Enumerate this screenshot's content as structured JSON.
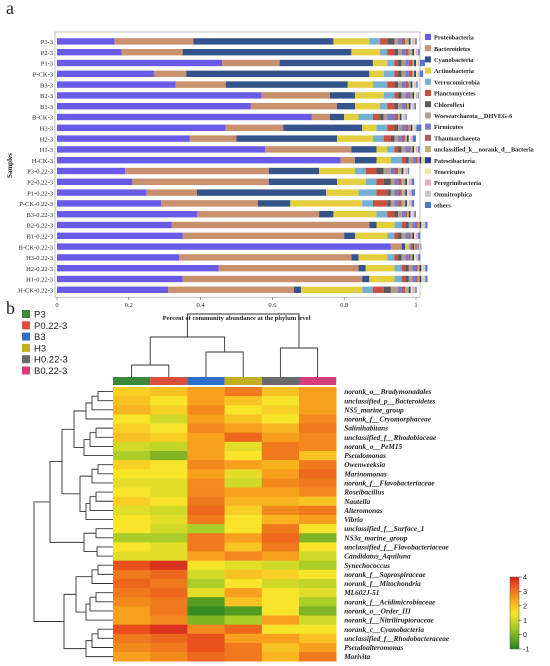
{
  "panel_a_letter": "a",
  "panel_b_letter": "b",
  "chart_data": [
    {
      "type": "bar",
      "orientation": "horizontal",
      "stacked": true,
      "xlabel": "Percent of community abundance at the phylum level",
      "ylabel": "Samples",
      "xlim": [
        0,
        1
      ],
      "xticks": [
        "0",
        "0.2",
        "0.4",
        "0.6",
        "0.8",
        "1"
      ],
      "legend_position": "right",
      "categories": [
        "P3-3",
        "P2-3",
        "P1-3",
        "P-CK-3",
        "B3-3",
        "B2-3",
        "B1-3",
        "B-CK-3",
        "H3-3",
        "H2-3",
        "H1-3",
        "H-CK-3",
        "P3-0.22-3",
        "P2-0.22-3",
        "P1-0.22-3",
        "P-CK-0.22-3",
        "B3-0.22-3",
        "B2-0.22-3",
        "B1-0.22-3",
        "B-CK-0.22-3",
        "H3-0.22-3",
        "H2-0.22-3",
        "H1-0.22-3",
        "H-CK-0.22-3"
      ],
      "series": [
        {
          "name": "Proteobacteria",
          "color": "#6a5ae8",
          "values": [
            0.16,
            0.18,
            0.46,
            0.27,
            0.33,
            0.57,
            0.54,
            0.71,
            0.47,
            0.37,
            0.58,
            0.79,
            0.19,
            0.21,
            0.25,
            0.29,
            0.39,
            0.32,
            0.35,
            0.93,
            0.34,
            0.45,
            0.35,
            0.31
          ]
        },
        {
          "name": "Bacteroidetes",
          "color": "#c8906c",
          "values": [
            0.22,
            0.17,
            0.16,
            0.09,
            0.14,
            0.19,
            0.24,
            0.05,
            0.16,
            0.13,
            0.24,
            0.04,
            0.4,
            0.38,
            0.14,
            0.27,
            0.34,
            0.55,
            0.45,
            0.03,
            0.48,
            0.39,
            0.5,
            0.35
          ]
        },
        {
          "name": "Cyanobacteria",
          "color": "#34538a",
          "values": [
            0.39,
            0.47,
            0.26,
            0.51,
            0.34,
            0.07,
            0.05,
            0.04,
            0.22,
            0.28,
            0.07,
            0.06,
            0.14,
            0.19,
            0.36,
            0.09,
            0.04,
            0.02,
            0.03,
            0.01,
            0.02,
            0.02,
            0.02,
            0.02
          ]
        },
        {
          "name": "Actinobacteria",
          "color": "#e3cf3e",
          "values": [
            0.1,
            0.08,
            0.04,
            0.04,
            0.07,
            0.08,
            0.07,
            0.04,
            0.04,
            0.1,
            0.03,
            0.04,
            0.1,
            0.08,
            0.09,
            0.2,
            0.12,
            0.05,
            0.09,
            0.01,
            0.08,
            0.08,
            0.07,
            0.17
          ]
        },
        {
          "name": "Verrucomicrobia",
          "color": "#74b0d2",
          "values": [
            0.03,
            0.02,
            0.02,
            0.03,
            0.04,
            0.03,
            0.02,
            0.04,
            0.03,
            0.03,
            0.02,
            0.03,
            0.03,
            0.03,
            0.05,
            0.03,
            0.03,
            0.02,
            0.02,
            0.005,
            0.02,
            0.02,
            0.02,
            0.03
          ]
        },
        {
          "name": "Planctomycetes",
          "color": "#c9503e",
          "values": [
            0.02,
            0.02,
            0.01,
            0.01,
            0.02,
            0.01,
            0.02,
            0.02,
            0.02,
            0.02,
            0.01,
            0.01,
            0.03,
            0.02,
            0.03,
            0.04,
            0.02,
            0.01,
            0.01,
            0.005,
            0.01,
            0.01,
            0.01,
            0.03
          ]
        },
        {
          "name": "Chloroflexi",
          "color": "#5a5a5a",
          "values": [
            0.02,
            0.01,
            0.01,
            0.01,
            0.01,
            0.01,
            0.01,
            0.01,
            0.01,
            0.01,
            0.01,
            0.01,
            0.02,
            0.02,
            0.01,
            0.01,
            0.01,
            0.01,
            0.01,
            0.005,
            0.01,
            0.01,
            0.01,
            0.02
          ]
        },
        {
          "name": "Woesearchaeota__DHVEG-6",
          "color": "#b29c92",
          "values": [
            0.01,
            0.01,
            0.01,
            0.01,
            0.01,
            0.01,
            0.01,
            0.01,
            0.01,
            0.01,
            0.01,
            0.01,
            0.02,
            0.01,
            0.01,
            0.01,
            0.01,
            0.01,
            0.01,
            0.003,
            0.01,
            0.01,
            0.01,
            0.02
          ]
        },
        {
          "name": "Firmicutes",
          "color": "#7a7ac6",
          "values": [
            0.01,
            0.01,
            0.01,
            0.01,
            0.01,
            0.01,
            0.01,
            0.02,
            0.01,
            0.01,
            0.01,
            0.01,
            0.01,
            0.01,
            0.01,
            0.01,
            0.01,
            0.01,
            0.01,
            0.003,
            0.01,
            0.01,
            0.01,
            0.01
          ]
        },
        {
          "name": "Thaumarchaeota",
          "color": "#b05b6a",
          "values": [
            0.01,
            0.01,
            0.01,
            0.01,
            0.01,
            0.005,
            0.005,
            0.01,
            0.01,
            0.01,
            0.005,
            0.005,
            0.01,
            0.01,
            0.01,
            0.01,
            0.005,
            0.005,
            0.005,
            0.002,
            0.005,
            0.005,
            0.005,
            0.01
          ]
        },
        {
          "name": "unclassified_k__norank_d__Bacteria",
          "color": "#b8b070",
          "values": [
            0.01,
            0.01,
            0.005,
            0.005,
            0.005,
            0.005,
            0.005,
            0.005,
            0.005,
            0.005,
            0.005,
            0.005,
            0.01,
            0.01,
            0.01,
            0.01,
            0.005,
            0.005,
            0.005,
            0.002,
            0.005,
            0.005,
            0.005,
            0.01
          ]
        },
        {
          "name": "Patescibacteria",
          "color": "#2f3e8c",
          "values": [
            0.005,
            0.005,
            0.005,
            0.005,
            0.005,
            0.005,
            0.005,
            0.005,
            0.005,
            0.005,
            0.005,
            0.005,
            0.005,
            0.005,
            0.005,
            0.005,
            0.005,
            0.005,
            0.005,
            0.002,
            0.005,
            0.005,
            0.005,
            0.005
          ]
        },
        {
          "name": "Tenericutes",
          "color": "#f5e6a6",
          "values": [
            0.005,
            0.005,
            0.005,
            0.005,
            0.005,
            0.005,
            0.005,
            0.005,
            0.005,
            0.005,
            0.005,
            0.005,
            0.005,
            0.005,
            0.005,
            0.005,
            0.005,
            0.005,
            0.005,
            0.002,
            0.005,
            0.005,
            0.005,
            0.005
          ]
        },
        {
          "name": "Peregrinibacteria",
          "color": "#e6a8c4",
          "values": [
            0.005,
            0.003,
            0.003,
            0.003,
            0.003,
            0.003,
            0.003,
            0.003,
            0.003,
            0.003,
            0.003,
            0.003,
            0.005,
            0.005,
            0.005,
            0.005,
            0.003,
            0.003,
            0.003,
            0.002,
            0.003,
            0.003,
            0.003,
            0.005
          ]
        },
        {
          "name": "Omnitrophica",
          "color": "#c7c7c7",
          "values": [
            0.003,
            0.003,
            0.003,
            0.003,
            0.003,
            0.003,
            0.003,
            0.003,
            0.003,
            0.003,
            0.003,
            0.003,
            0.003,
            0.003,
            0.003,
            0.003,
            0.003,
            0.003,
            0.003,
            0.002,
            0.003,
            0.003,
            0.003,
            0.003
          ]
        },
        {
          "name": "others",
          "color": "#5577cc",
          "values": [
            0.004,
            0.004,
            0.014,
            0.009,
            0.004,
            0.002,
            0.004,
            0.003,
            0.014,
            0.009,
            0.004,
            0.003,
            0.003,
            0.007,
            0.009,
            0.007,
            0.004,
            0.006,
            0.006,
            0.002,
            0.006,
            0.006,
            0.006,
            0.004
          ]
        }
      ]
    },
    {
      "type": "heatmap",
      "legend_position": "top-left",
      "colorbar_ticks": [
        "4",
        "3",
        "2",
        "1",
        "0",
        "-1"
      ],
      "zlim": [
        -1,
        4
      ],
      "columns": [
        "P3",
        "P0.22-3",
        "B3",
        "H3",
        "H0.22-3",
        "B0.22-3"
      ],
      "column_colors": [
        "#3a8a3a",
        "#d8503a",
        "#2f6fc8",
        "#c0b020",
        "#6a6a6a",
        "#d43d78"
      ],
      "legend": [
        {
          "name": "P3",
          "color": "#3a8a3a"
        },
        {
          "name": "P0.22-3",
          "color": "#d8503a"
        },
        {
          "name": "B3",
          "color": "#2f6fc8"
        },
        {
          "name": "H3",
          "color": "#c0b020"
        },
        {
          "name": "H0.22-3",
          "color": "#6a6a6a"
        },
        {
          "name": "B0.22-3",
          "color": "#d43d78"
        }
      ],
      "rows": [
        "norank_o__Bradymonadales",
        "unclassified_p__Bacteroidetes",
        "NS5_marine_group",
        "norank_f__Cryomorphaceae",
        "Salinihabitans",
        "unclassified_f__Rhodobiaceae",
        "norank_o__PeM15",
        "Pseudomonas",
        "Owenweeksia",
        "Marinomonas",
        "norank_f__Flavobacteriaceae",
        "Roseibacillus",
        "Nautella",
        "Alteromonas",
        "Vibrio",
        "unclassified_f__Surface_1",
        "NS3a_marine_group",
        "unclassified_f__Flavobacteriaceae",
        "Candidatus_Aquiluna",
        "Synechococcus",
        "norank_f__Saprospiraceae",
        "norank_f__Mitochondria",
        "ML602J-51",
        "norank_f__Acidimicrobiaceae",
        "norank_o__Order_III",
        "norank_f__Nitriliruptoraceae",
        "norank_c__Cyanobacteria",
        "unclassified_f__Rhodobacteraceae",
        "Pseudoalteromonas",
        "Marivita"
      ],
      "values": [
        [
          1.8,
          2.0,
          2.5,
          3.0,
          2.0,
          2.5
        ],
        [
          2.0,
          1.5,
          2.5,
          2.0,
          1.5,
          2.5
        ],
        [
          2.2,
          1.8,
          2.8,
          1.5,
          1.8,
          2.5
        ],
        [
          1.5,
          1.0,
          2.5,
          2.0,
          1.5,
          2.8
        ],
        [
          1.8,
          1.5,
          2.8,
          2.5,
          2.2,
          3.0
        ],
        [
          2.0,
          1.8,
          2.5,
          3.2,
          2.5,
          2.8
        ],
        [
          1.0,
          0.8,
          2.5,
          1.2,
          3.0,
          2.8
        ],
        [
          0.5,
          0.0,
          2.5,
          1.5,
          3.0,
          2.0
        ],
        [
          1.8,
          1.5,
          2.8,
          2.5,
          2.2,
          3.0
        ],
        [
          1.5,
          1.5,
          2.5,
          1.2,
          2.5,
          3.2
        ],
        [
          1.2,
          1.2,
          2.8,
          1.0,
          2.8,
          3.0
        ],
        [
          1.5,
          1.2,
          2.8,
          2.5,
          2.5,
          2.8
        ],
        [
          1.8,
          1.5,
          3.0,
          2.2,
          2.2,
          2.0
        ],
        [
          1.2,
          1.0,
          3.2,
          1.8,
          2.8,
          3.0
        ],
        [
          1.5,
          1.2,
          3.0,
          1.5,
          2.2,
          2.5
        ],
        [
          1.5,
          1.0,
          0.5,
          1.5,
          3.0,
          1.5
        ],
        [
          0.5,
          0.5,
          3.0,
          2.5,
          3.2,
          0.0
        ],
        [
          1.5,
          1.2,
          3.0,
          2.0,
          3.0,
          1.5
        ],
        [
          1.2,
          1.2,
          2.5,
          2.8,
          2.5,
          1.0
        ],
        [
          3.5,
          3.8,
          1.5,
          1.2,
          1.0,
          0.5
        ],
        [
          3.0,
          3.2,
          1.0,
          2.0,
          1.8,
          1.5
        ],
        [
          3.2,
          3.0,
          0.5,
          1.5,
          1.0,
          0.8
        ],
        [
          3.0,
          3.2,
          1.2,
          2.5,
          1.5,
          1.2
        ],
        [
          2.8,
          3.0,
          -0.5,
          2.0,
          1.5,
          0.5
        ],
        [
          2.5,
          3.0,
          -0.8,
          -0.5,
          1.5,
          0.0
        ],
        [
          2.5,
          2.8,
          0.0,
          0.5,
          2.5,
          1.0
        ],
        [
          3.5,
          3.8,
          2.8,
          3.2,
          1.5,
          1.5
        ],
        [
          3.0,
          3.2,
          3.5,
          2.5,
          2.5,
          2.0
        ],
        [
          2.8,
          3.0,
          3.5,
          3.0,
          2.0,
          2.5
        ],
        [
          2.5,
          2.8,
          3.2,
          3.0,
          2.2,
          3.0
        ]
      ]
    }
  ]
}
